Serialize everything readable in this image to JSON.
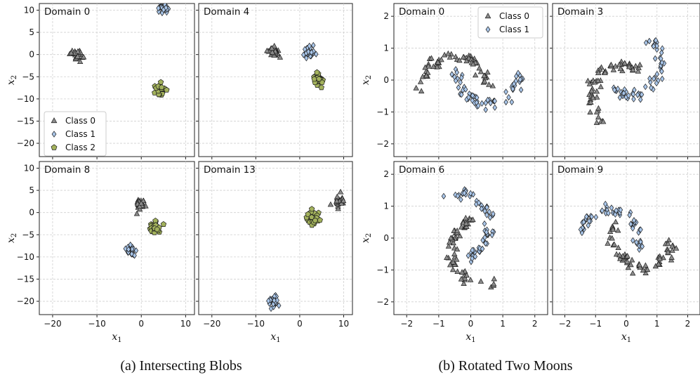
{
  "colors": {
    "Class 0": "#8c8c8c",
    "Class 1": "#a9c6ea",
    "Class 2": "#a3b25c",
    "edge": "#1e1e1e"
  },
  "chart_data": [
    {
      "type": "scatter",
      "figure": "a",
      "caption": "(a) Intersecting Blobs",
      "xlabel": "x",
      "xlabel_sub": "1",
      "ylabel": "x",
      "ylabel_sub": "2",
      "xlim": [
        -23,
        12
      ],
      "ylim": [
        -23,
        11.5
      ],
      "xticks": [
        -20,
        -10,
        0,
        10
      ],
      "yticks": [
        10,
        5,
        0,
        -5,
        -10,
        -15,
        -20
      ],
      "grid": true,
      "legend": {
        "panel": "Domain 0",
        "position": "lower-left",
        "entries": [
          {
            "label": "Class 0",
            "marker": "triangle"
          },
          {
            "label": "Class 1",
            "marker": "diamond"
          },
          {
            "label": "Class 2",
            "marker": "pentagon"
          }
        ]
      },
      "panels": [
        {
          "title": "Domain 0",
          "clusters": [
            {
              "class": "Class 0",
              "marker": "triangle",
              "center": [
                -14.5,
                0.0
              ],
              "spread": [
                1.2,
                1.1
              ],
              "n": 28
            },
            {
              "class": "Class 1",
              "marker": "diamond",
              "center": [
                5.0,
                10.5
              ],
              "spread": [
                1.0,
                1.0
              ],
              "n": 24
            },
            {
              "class": "Class 2",
              "marker": "pentagon",
              "center": [
                4.0,
                -8.0
              ],
              "spread": [
                1.1,
                1.3
              ],
              "n": 28
            }
          ]
        },
        {
          "title": "Domain 4",
          "clusters": [
            {
              "class": "Class 0",
              "marker": "triangle",
              "center": [
                -6.0,
                0.5
              ],
              "spread": [
                1.1,
                1.2
              ],
              "n": 28
            },
            {
              "class": "Class 1",
              "marker": "diamond",
              "center": [
                2.0,
                0.5
              ],
              "spread": [
                1.1,
                1.1
              ],
              "n": 28
            },
            {
              "class": "Class 2",
              "marker": "pentagon",
              "center": [
                4.0,
                -5.8
              ],
              "spread": [
                1.0,
                1.0
              ],
              "n": 28
            }
          ]
        },
        {
          "title": "Domain 8",
          "clusters": [
            {
              "class": "Class 0",
              "marker": "triangle",
              "center": [
                0.0,
                2.0
              ],
              "spread": [
                1.1,
                1.1
              ],
              "n": 28
            },
            {
              "class": "Class 1",
              "marker": "diamond",
              "center": [
                -2.5,
                -8.5
              ],
              "spread": [
                1.0,
                1.1
              ],
              "n": 28
            },
            {
              "class": "Class 2",
              "marker": "pentagon",
              "center": [
                3.0,
                -3.5
              ],
              "spread": [
                1.1,
                1.3
              ],
              "n": 28
            }
          ]
        },
        {
          "title": "Domain 13",
          "clusters": [
            {
              "class": "Class 0",
              "marker": "triangle",
              "center": [
                9.0,
                2.5
              ],
              "spread": [
                1.2,
                1.2
              ],
              "n": 28
            },
            {
              "class": "Class 1",
              "marker": "diamond",
              "center": [
                -6.0,
                -20.0
              ],
              "spread": [
                1.0,
                1.3
              ],
              "n": 28
            },
            {
              "class": "Class 2",
              "marker": "pentagon",
              "center": [
                3.0,
                -1.5
              ],
              "spread": [
                1.1,
                1.3
              ],
              "n": 28
            }
          ]
        }
      ]
    },
    {
      "type": "scatter",
      "figure": "b",
      "caption": "(b) Rotated Two Moons",
      "xlabel": "x",
      "xlabel_sub": "1",
      "ylabel": "x",
      "ylabel_sub": "2",
      "xlim": [
        -2.4,
        2.4
      ],
      "ylim": [
        -2.4,
        2.4
      ],
      "xticks": [
        -2,
        -1,
        0,
        1,
        2
      ],
      "yticks": [
        2,
        1,
        0,
        -1,
        -2
      ],
      "grid": true,
      "legend": {
        "panel": "Domain 0",
        "position": "top-right",
        "entries": [
          {
            "label": "Class 0",
            "marker": "triangle"
          },
          {
            "label": "Class 1",
            "marker": "diamond"
          }
        ]
      },
      "panels": [
        {
          "title": "Domain 0",
          "rotation_deg": 0,
          "n_per_class": 60
        },
        {
          "title": "Domain 3",
          "rotation_deg": 50,
          "n_per_class": 60
        },
        {
          "title": "Domain 6",
          "rotation_deg": 110,
          "n_per_class": 60
        },
        {
          "title": "Domain 9",
          "rotation_deg": 165,
          "n_per_class": 60
        }
      ]
    }
  ]
}
